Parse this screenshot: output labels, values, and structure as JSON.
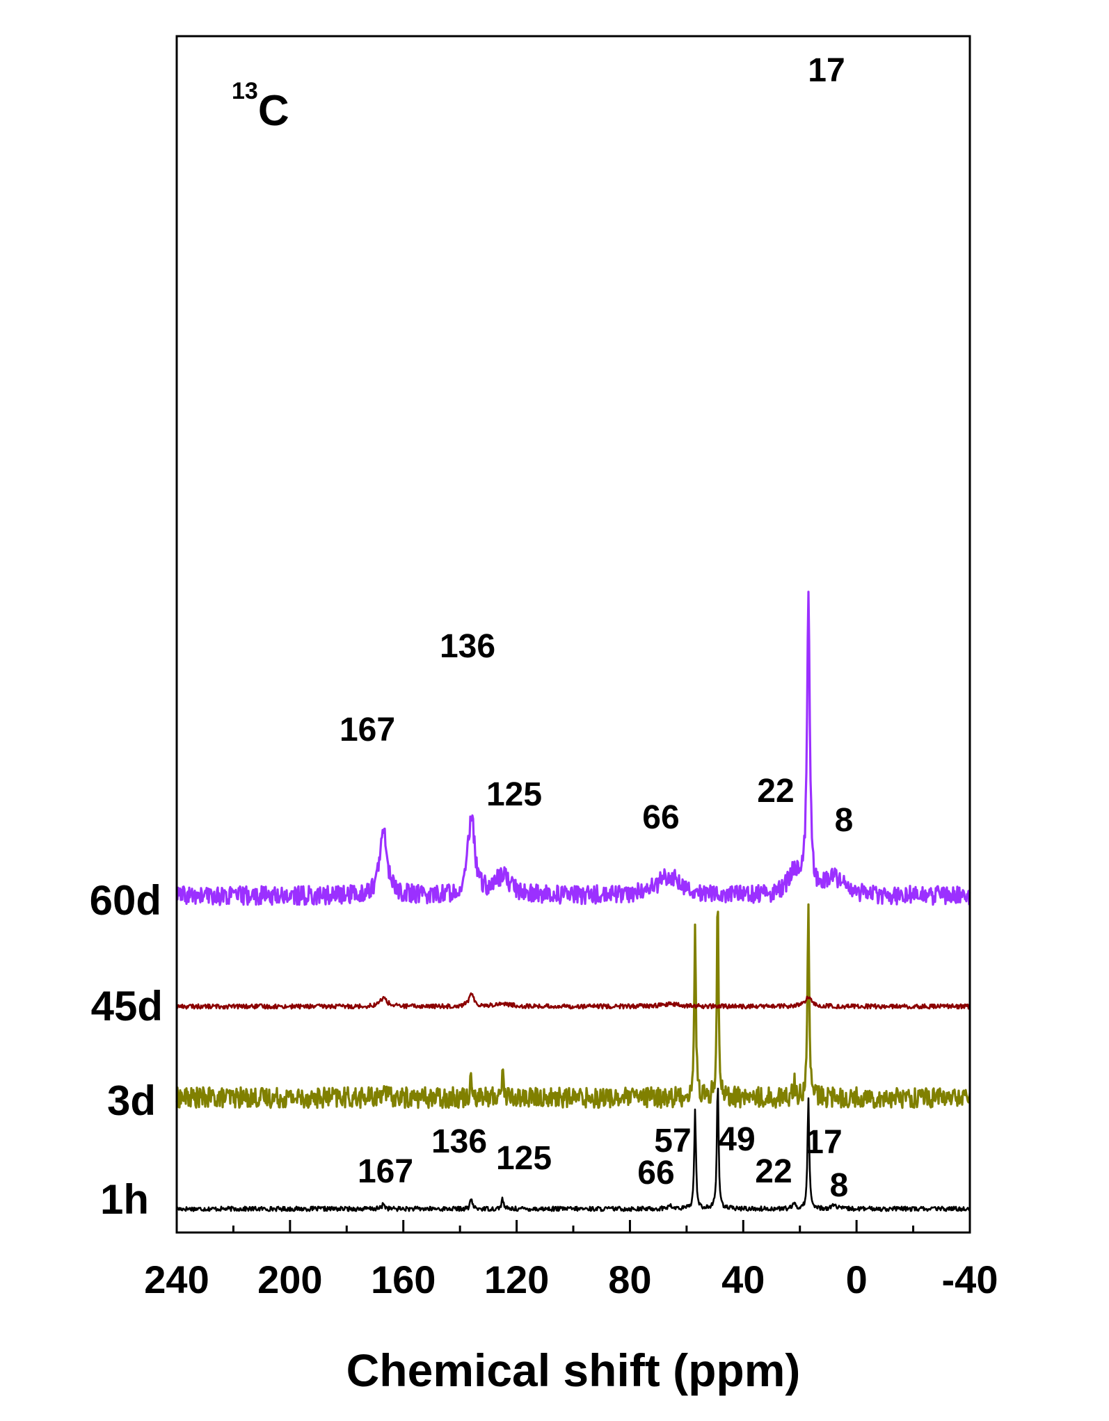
{
  "chart_data": {
    "type": "line",
    "title": "",
    "nucleus": {
      "mass_number": "13",
      "symbol": "C"
    },
    "xlabel": "Chemical shift (ppm)",
    "ylabel": "",
    "xlim": [
      240,
      -40
    ],
    "x_reversed": true,
    "x_ticks": [
      240,
      200,
      160,
      120,
      80,
      40,
      0,
      -40
    ],
    "x_tick_labels": [
      "240",
      "200",
      "160",
      "120",
      "80",
      "40",
      "0",
      "-40"
    ],
    "grid": false,
    "legend": "none",
    "series": [
      {
        "name": "60d",
        "color": "#9b30ff",
        "noise_level": 0.5,
        "peaks": [
          {
            "x": 167,
            "height": 3.4,
            "width": 1.6,
            "label": "167"
          },
          {
            "x": 136,
            "height": 4.2,
            "width": 1.4,
            "label": "136"
          },
          {
            "x": 125,
            "height": 1.0,
            "width": 3.5,
            "label": "125"
          },
          {
            "x": 66,
            "height": 1.1,
            "width": 5.0,
            "label": "66"
          },
          {
            "x": 22,
            "height": 1.2,
            "width": 2.5,
            "label": "22"
          },
          {
            "x": 17,
            "height": 15.5,
            "width": 0.6,
            "label": "17"
          },
          {
            "x": 8,
            "height": 0.9,
            "width": 4.0,
            "label": "8"
          }
        ]
      },
      {
        "name": "45d",
        "color": "#8b0000",
        "noise_level": 0.12,
        "peaks": [
          {
            "x": 167,
            "height": 0.45,
            "width": 1.5
          },
          {
            "x": 136,
            "height": 0.6,
            "width": 1.2
          },
          {
            "x": 125,
            "height": 0.15,
            "width": 3.0
          },
          {
            "x": 66,
            "height": 0.12,
            "width": 4.0
          },
          {
            "x": 17,
            "height": 0.45,
            "width": 1.5
          }
        ]
      },
      {
        "name": "3d",
        "color": "#808000",
        "noise_level": 0.55,
        "peaks": [
          {
            "x": 167,
            "height": 0.8,
            "width": 0.4
          },
          {
            "x": 136,
            "height": 1.3,
            "width": 0.4
          },
          {
            "x": 125,
            "height": 1.4,
            "width": 0.4
          },
          {
            "x": 57,
            "height": 8.8,
            "width": 0.35
          },
          {
            "x": 49,
            "height": 11.0,
            "width": 0.35
          },
          {
            "x": 22,
            "height": 1.0,
            "width": 0.4
          },
          {
            "x": 17,
            "height": 10.5,
            "width": 0.35
          }
        ]
      },
      {
        "name": "1h",
        "color": "#000000",
        "noise_level": 0.12,
        "peaks": [
          {
            "x": 167,
            "height": 0.3,
            "width": 0.5,
            "label": "167"
          },
          {
            "x": 136,
            "height": 0.6,
            "width": 0.4,
            "label": "136"
          },
          {
            "x": 125,
            "height": 0.55,
            "width": 0.4,
            "label": "125"
          },
          {
            "x": 66,
            "height": 0.15,
            "width": 1.0,
            "label": "66"
          },
          {
            "x": 57,
            "height": 5.4,
            "width": 0.35,
            "label": "57"
          },
          {
            "x": 49,
            "height": 6.8,
            "width": 0.35,
            "label": "49"
          },
          {
            "x": 22,
            "height": 0.25,
            "width": 0.6,
            "label": "22"
          },
          {
            "x": 17,
            "height": 6.0,
            "width": 0.35,
            "label": "17"
          },
          {
            "x": 8,
            "height": 0.2,
            "width": 1.0,
            "label": "8"
          }
        ]
      }
    ]
  }
}
